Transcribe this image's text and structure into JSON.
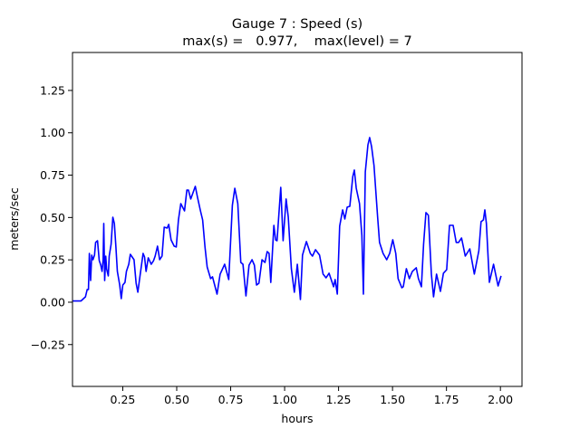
{
  "chart_data": {
    "type": "line",
    "title": "Gauge 7 : Speed (s)",
    "subtitle": "max(s) =   0.977,    max(level) = 7",
    "xlabel": "hours",
    "ylabel": "meters/sec",
    "xlim": [
      0.017,
      2.1
    ],
    "ylim": [
      -0.497,
      1.474
    ],
    "grid": false,
    "line_color": "#0000ff",
    "xticks": [
      "0.25",
      "0.50",
      "0.75",
      "1.00",
      "1.25",
      "1.50",
      "1.75",
      "2.00"
    ],
    "yticks": [
      "−0.25",
      "0.00",
      "0.25",
      "0.50",
      "0.75",
      "1.00",
      "1.25"
    ],
    "x": [
      0.017,
      0.056,
      0.077,
      0.085,
      0.091,
      0.095,
      0.101,
      0.106,
      0.112,
      0.119,
      0.124,
      0.133,
      0.141,
      0.148,
      0.154,
      0.159,
      0.162,
      0.166,
      0.171,
      0.175,
      0.183,
      0.187,
      0.196,
      0.204,
      0.211,
      0.218,
      0.225,
      0.236,
      0.243,
      0.25,
      0.26,
      0.267,
      0.278,
      0.285,
      0.302,
      0.312,
      0.32,
      0.33,
      0.344,
      0.351,
      0.358,
      0.368,
      0.382,
      0.393,
      0.4,
      0.411,
      0.421,
      0.432,
      0.442,
      0.456,
      0.463,
      0.474,
      0.488,
      0.498,
      0.508,
      0.519,
      0.536,
      0.547,
      0.554,
      0.565,
      0.586,
      0.596,
      0.61,
      0.62,
      0.631,
      0.641,
      0.657,
      0.666,
      0.687,
      0.701,
      0.722,
      0.741,
      0.758,
      0.769,
      0.783,
      0.797,
      0.807,
      0.821,
      0.835,
      0.849,
      0.86,
      0.87,
      0.881,
      0.895,
      0.909,
      0.919,
      0.928,
      0.936,
      0.95,
      0.958,
      0.965,
      0.982,
      0.993,
      1.007,
      1.017,
      1.031,
      1.045,
      1.059,
      1.073,
      1.083,
      1.101,
      1.119,
      1.129,
      1.143,
      1.162,
      1.178,
      1.192,
      1.206,
      1.227,
      1.234,
      1.244,
      1.255,
      1.269,
      1.279,
      1.29,
      1.302,
      1.316,
      1.323,
      1.332,
      1.347,
      1.358,
      1.365,
      1.374,
      1.386,
      1.394,
      1.403,
      1.414,
      1.431,
      1.44,
      1.456,
      1.473,
      1.487,
      1.501,
      1.515,
      1.526,
      1.543,
      1.55,
      1.564,
      1.578,
      1.592,
      1.61,
      1.62,
      1.634,
      1.644,
      1.655,
      1.666,
      1.68,
      1.69,
      1.704,
      1.722,
      1.736,
      1.751,
      1.764,
      1.781,
      1.795,
      1.806,
      1.82,
      1.837,
      1.858,
      1.879,
      1.9,
      1.91,
      1.921,
      1.928,
      1.935,
      1.949,
      1.968,
      1.989,
      2.003
    ],
    "y": [
      0.007,
      0.007,
      0.032,
      0.075,
      0.075,
      0.288,
      0.128,
      0.278,
      0.251,
      0.278,
      0.353,
      0.363,
      0.246,
      0.219,
      0.182,
      0.251,
      0.465,
      0.128,
      0.272,
      0.198,
      0.155,
      0.272,
      0.342,
      0.502,
      0.465,
      0.326,
      0.182,
      0.101,
      0.021,
      0.101,
      0.117,
      0.182,
      0.224,
      0.283,
      0.251,
      0.112,
      0.059,
      0.155,
      0.288,
      0.267,
      0.182,
      0.262,
      0.224,
      0.246,
      0.272,
      0.331,
      0.251,
      0.272,
      0.443,
      0.438,
      0.459,
      0.368,
      0.331,
      0.326,
      0.486,
      0.582,
      0.539,
      0.662,
      0.662,
      0.609,
      0.684,
      0.62,
      0.539,
      0.486,
      0.326,
      0.208,
      0.139,
      0.15,
      0.048,
      0.166,
      0.224,
      0.134,
      0.572,
      0.673,
      0.582,
      0.235,
      0.224,
      0.037,
      0.219,
      0.251,
      0.219,
      0.101,
      0.112,
      0.251,
      0.235,
      0.299,
      0.288,
      0.117,
      0.454,
      0.368,
      0.363,
      0.678,
      0.363,
      0.609,
      0.502,
      0.198,
      0.059,
      0.224,
      0.016,
      0.278,
      0.358,
      0.288,
      0.272,
      0.31,
      0.278,
      0.166,
      0.144,
      0.171,
      0.091,
      0.134,
      0.048,
      0.449,
      0.545,
      0.491,
      0.561,
      0.566,
      0.742,
      0.78,
      0.673,
      0.582,
      0.395,
      0.048,
      0.769,
      0.929,
      0.972,
      0.919,
      0.807,
      0.502,
      0.353,
      0.288,
      0.251,
      0.288,
      0.369,
      0.288,
      0.139,
      0.085,
      0.091,
      0.198,
      0.139,
      0.182,
      0.203,
      0.139,
      0.091,
      0.342,
      0.529,
      0.513,
      0.166,
      0.032,
      0.166,
      0.064,
      0.171,
      0.192,
      0.454,
      0.454,
      0.353,
      0.353,
      0.379,
      0.272,
      0.315,
      0.166,
      0.304,
      0.475,
      0.486,
      0.545,
      0.465,
      0.118,
      0.224,
      0.096,
      0.155
    ]
  }
}
